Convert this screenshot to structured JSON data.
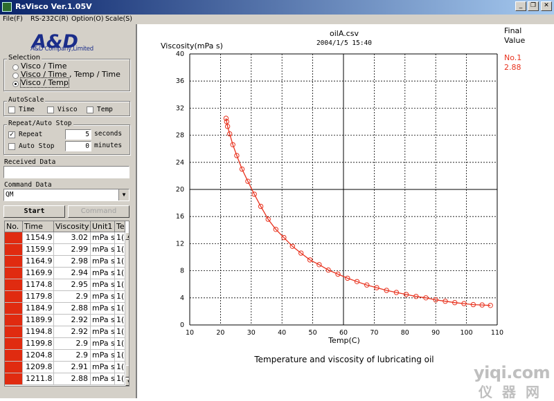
{
  "window": {
    "title": "RsVisco Ver.1.05V",
    "controls": [
      "_",
      "❐",
      "✕"
    ]
  },
  "menu": [
    "File(F)",
    "RS-232C(R)",
    "Option(O)",
    "Scale(S)"
  ],
  "logo": {
    "mark": "A&D",
    "company": "A&D Company,Limited"
  },
  "selection": {
    "title": "Selection",
    "options": [
      "Visco / Time",
      "Visco / Time , Temp / Time",
      "Visco / Temp"
    ],
    "selected_index": 2
  },
  "autoscale": {
    "title": "AutoScale",
    "items": [
      {
        "label": "Time",
        "checked": false
      },
      {
        "label": "Visco",
        "checked": false
      },
      {
        "label": "Temp",
        "checked": false
      }
    ]
  },
  "repeat_stop": {
    "title": "Repeat/Auto Stop",
    "repeat_label": "Repeat",
    "repeat_checked": true,
    "repeat_value": "5",
    "repeat_unit": "seconds",
    "autostop_label": "Auto Stop",
    "autostop_checked": false,
    "autostop_value": "0",
    "autostop_unit": "minutes"
  },
  "received": {
    "label": "Received Data",
    "value": ""
  },
  "command": {
    "label": "Command Data",
    "value": "QM"
  },
  "buttons": {
    "start": "Start",
    "command": "Command"
  },
  "table": {
    "headers": [
      "No.",
      "Time",
      "Viscosity",
      "Unit1",
      "Te"
    ],
    "rows": [
      [
        "",
        "1154.9",
        "3.02",
        "mPa s",
        "1("
      ],
      [
        "",
        "1159.9",
        "2.99",
        "mPa s",
        "1("
      ],
      [
        "",
        "1164.9",
        "2.98",
        "mPa s",
        "1("
      ],
      [
        "",
        "1169.9",
        "2.94",
        "mPa s",
        "1("
      ],
      [
        "",
        "1174.8",
        "2.95",
        "mPa s",
        "1("
      ],
      [
        "",
        "1179.8",
        "2.9",
        "mPa s",
        "1("
      ],
      [
        "",
        "1184.9",
        "2.88",
        "mPa s",
        "1("
      ],
      [
        "",
        "1189.9",
        "2.92",
        "mPa s",
        "1("
      ],
      [
        "",
        "1194.8",
        "2.92",
        "mPa s",
        "1("
      ],
      [
        "",
        "1199.8",
        "2.9",
        "mPa s",
        "1("
      ],
      [
        "",
        "1204.8",
        "2.9",
        "mPa s",
        "1("
      ],
      [
        "",
        "1209.8",
        "2.91",
        "mPa s",
        "1("
      ],
      [
        "",
        "1211.8",
        "2.88",
        "mPa s",
        "1("
      ]
    ]
  },
  "final_value": {
    "label_line1": "Final",
    "label_line2": "Value",
    "series": "No.1",
    "value": "2.88"
  },
  "watermark": {
    "url": "yiqi.com",
    "cn": "仪器网"
  },
  "colors": {
    "curve": "#e8321e",
    "title_bar": "#0a246a",
    "table_marker": "#e02b10"
  },
  "chart_data": {
    "type": "line",
    "title": "oilA.csv",
    "subtitle": "2004/1/5 15:40",
    "xlabel": "Temp(C)",
    "ylabel": "Viscosity(mPa s)",
    "caption": "Temperature and viscosity of lubricating oil",
    "xlim": [
      10,
      110
    ],
    "ylim": [
      0,
      40
    ],
    "xticks": [
      10,
      20,
      30,
      40,
      50,
      60,
      70,
      80,
      90,
      100,
      110
    ],
    "yticks": [
      0,
      4,
      8,
      12,
      16,
      20,
      24,
      28,
      32,
      36,
      40
    ],
    "grid": true,
    "series": [
      {
        "name": "No.1",
        "x": [
          21.8,
          22.0,
          22.3,
          23.0,
          24.0,
          25.3,
          27.0,
          28.9,
          31.0,
          33.1,
          35.5,
          38.0,
          40.6,
          43.4,
          46.2,
          49.1,
          52.1,
          55.1,
          58.2,
          61.3,
          64.4,
          67.6,
          70.8,
          74.0,
          77.2,
          80.4,
          83.6,
          86.8,
          90.0,
          93.1,
          96.2,
          99.2,
          102.2,
          105.1,
          107.8
        ],
        "y": [
          30.5,
          30.0,
          29.3,
          28.2,
          26.6,
          25.0,
          23.0,
          21.2,
          19.3,
          17.5,
          15.6,
          14.1,
          12.9,
          11.6,
          10.6,
          9.6,
          8.9,
          8.1,
          7.5,
          6.9,
          6.4,
          5.9,
          5.5,
          5.1,
          4.8,
          4.5,
          4.2,
          4.0,
          3.7,
          3.5,
          3.3,
          3.15,
          3.0,
          2.95,
          2.88
        ]
      }
    ]
  }
}
